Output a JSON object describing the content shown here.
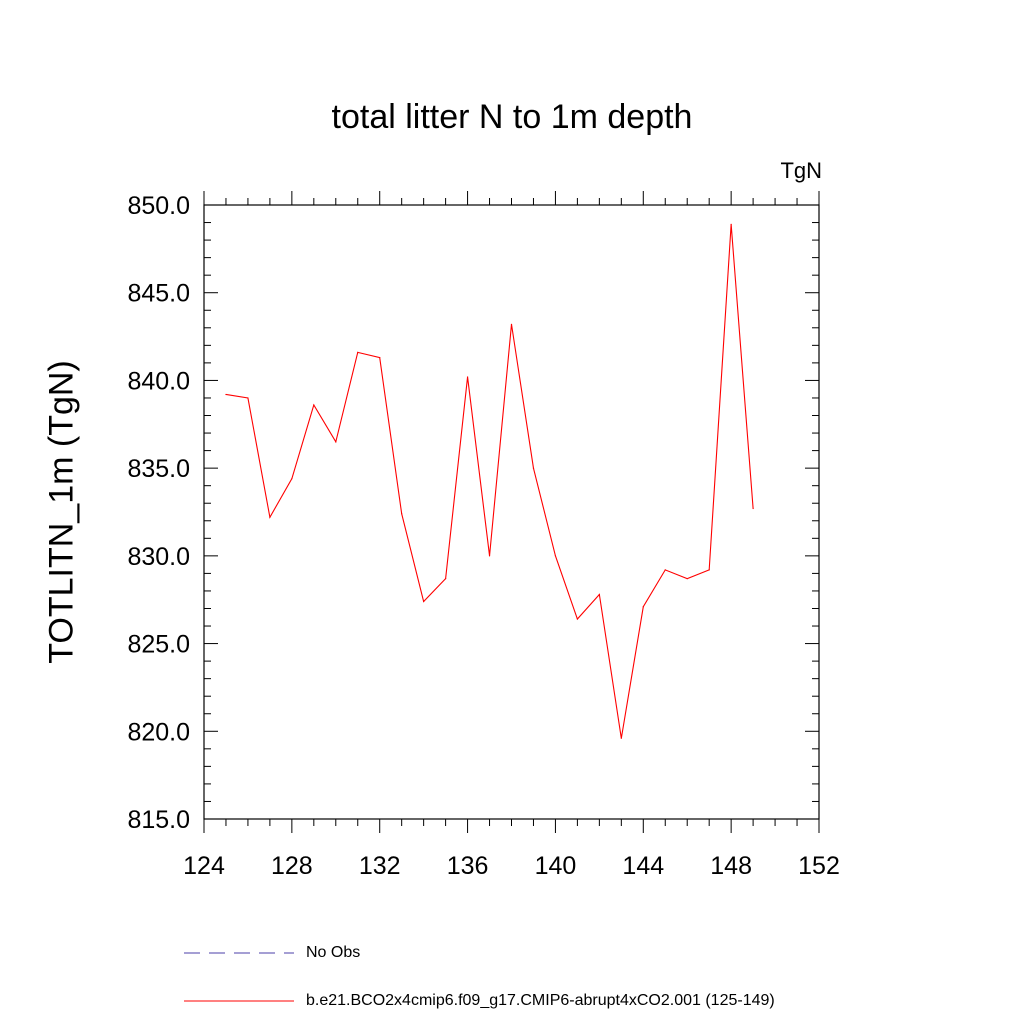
{
  "chart_data": {
    "type": "line",
    "title": "total litter N to 1m depth",
    "units_label": "TgN",
    "xlabel": "",
    "ylabel": "TOTLITN_1m  (TgN)",
    "xlim": [
      124,
      152
    ],
    "ylim": [
      815,
      850
    ],
    "xticks": [
      124,
      128,
      132,
      136,
      140,
      144,
      148,
      152
    ],
    "yticks": [
      815.0,
      820.0,
      825.0,
      830.0,
      835.0,
      840.0,
      845.0,
      850.0
    ],
    "ytick_labels": [
      "815.0",
      "820.0",
      "825.0",
      "830.0",
      "835.0",
      "840.0",
      "845.0",
      "850.0"
    ],
    "series": [
      {
        "name": "b.e21.BCO2x4cmip6.f09_g17.CMIP6-abrupt4xCO2.001 (125-149)",
        "color": "#ff0000",
        "style": "solid",
        "x": [
          125,
          126,
          127,
          128,
          129,
          130,
          131,
          132,
          133,
          134,
          135,
          136,
          137,
          138,
          139,
          140,
          141,
          142,
          143,
          144,
          145,
          146,
          147,
          148,
          149
        ],
        "values": [
          839.2,
          839.0,
          832.2,
          834.4,
          838.6,
          836.5,
          841.6,
          841.3,
          832.4,
          827.4,
          828.7,
          840.2,
          830.0,
          843.2,
          835.0,
          830.0,
          826.4,
          827.8,
          819.6,
          827.1,
          829.2,
          828.7,
          829.2,
          848.9,
          832.7
        ]
      }
    ],
    "legend": [
      {
        "label": "No Obs",
        "color": "#4b3fa8",
        "style": "dashed"
      },
      {
        "label": "b.e21.BCO2x4cmip6.f09_g17.CMIP6-abrupt4xCO2.001 (125-149)",
        "color": "#ff0000",
        "style": "solid"
      }
    ]
  }
}
